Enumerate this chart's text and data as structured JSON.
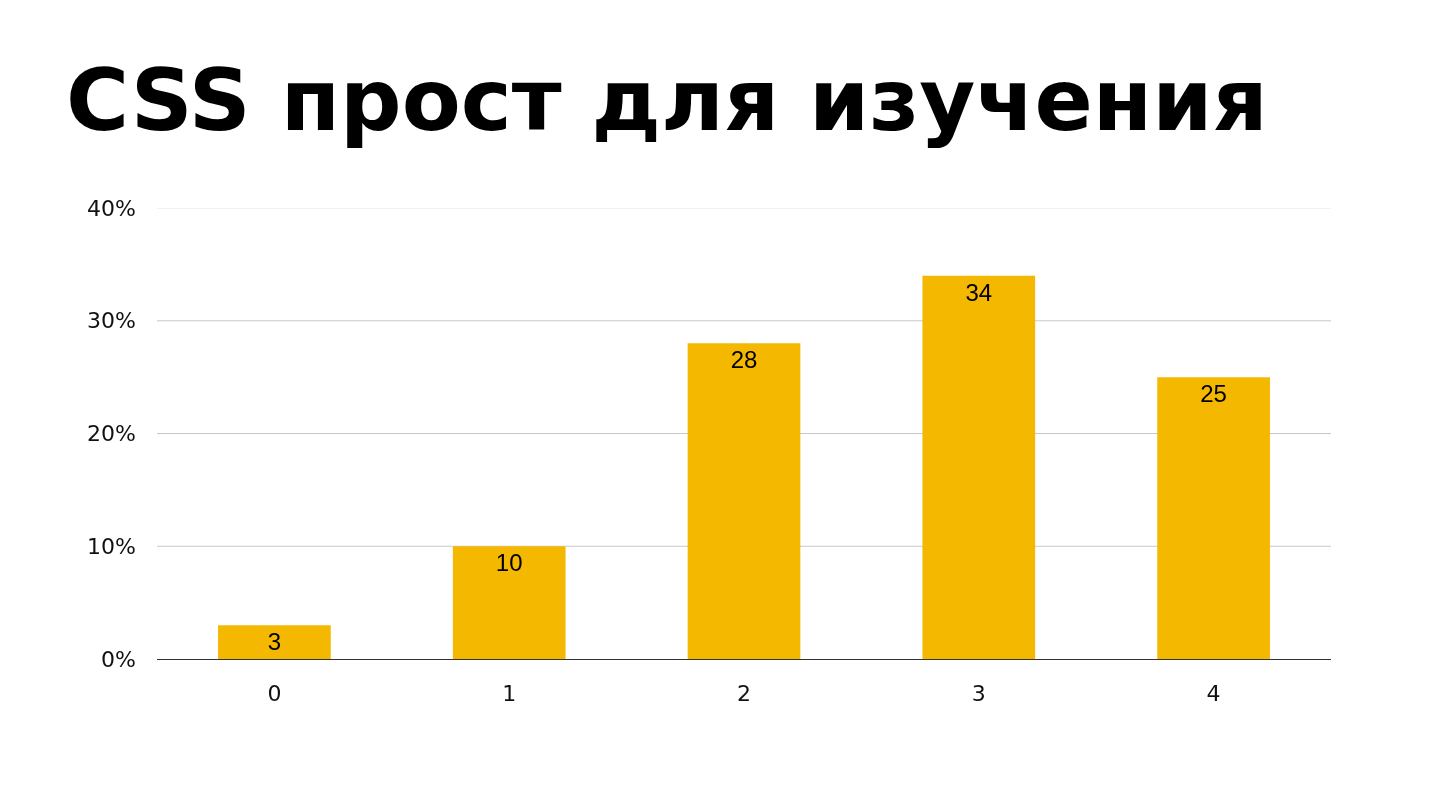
{
  "chart_data": {
    "type": "bar",
    "title": "CSS прост для изучения",
    "categories": [
      "0",
      "1",
      "2",
      "3",
      "4"
    ],
    "values": [
      3,
      10,
      28,
      34,
      25
    ],
    "color": "#f4b800",
    "ylim": [
      0,
      40
    ],
    "yticks": [
      {
        "value": 0,
        "label": "0%"
      },
      {
        "value": 10,
        "label": "10%"
      },
      {
        "value": 20,
        "label": "20%"
      },
      {
        "value": 30,
        "label": "30%"
      },
      {
        "value": 40,
        "label": "40%"
      }
    ],
    "grid": "y",
    "data_labels": true
  }
}
